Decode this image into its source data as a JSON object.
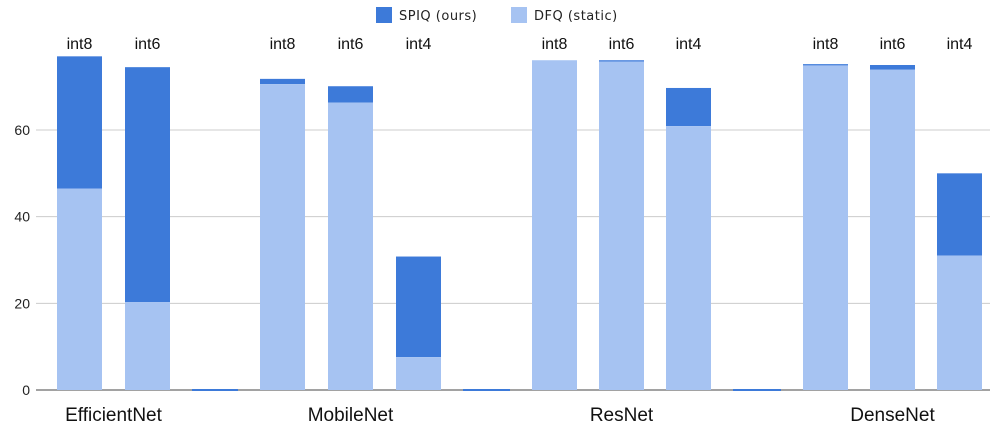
{
  "chart_data": {
    "type": "bar",
    "stacked": true,
    "title": "",
    "xlabel": "",
    "ylabel": "",
    "ylim": [
      0,
      78
    ],
    "yticks": [
      0,
      20,
      40,
      60
    ],
    "grid": true,
    "legend": {
      "position": "top-center",
      "entries": [
        {
          "name": "SPIQ (ours)",
          "color": "#3d7ad9"
        },
        {
          "name": "DFQ (static)",
          "color": "#a6c3f2"
        }
      ]
    },
    "groups": [
      {
        "name": "EfficientNet",
        "bars": [
          {
            "label": "int8",
            "dfq": 46.5,
            "spiq_total": 77.0
          },
          {
            "label": "int6",
            "dfq": 20.3,
            "spiq_total": 74.5
          }
        ]
      },
      {
        "name": "MobileNet",
        "bars": [
          {
            "label": "int8",
            "dfq": 70.6,
            "spiq_total": 71.8
          },
          {
            "label": "int6",
            "dfq": 66.3,
            "spiq_total": 70.1
          },
          {
            "label": "int4",
            "dfq": 7.6,
            "spiq_total": 30.8
          }
        ]
      },
      {
        "name": "ResNet",
        "bars": [
          {
            "label": "int8",
            "dfq": 76.1,
            "spiq_total": 76.1
          },
          {
            "label": "int6",
            "dfq": 75.8,
            "spiq_total": 76.1
          },
          {
            "label": "int4",
            "dfq": 60.9,
            "spiq_total": 69.7
          }
        ]
      },
      {
        "name": "DenseNet",
        "bars": [
          {
            "label": "int8",
            "dfq": 74.9,
            "spiq_total": 75.2
          },
          {
            "label": "int6",
            "dfq": 73.9,
            "spiq_total": 75.0
          },
          {
            "label": "int4",
            "dfq": 31.0,
            "spiq_total": 50.0
          }
        ]
      }
    ],
    "colors": {
      "spiq": "#3d7ad9",
      "dfq": "#a6c3f2",
      "grid": "#cccccc",
      "axis": "#444444",
      "separator": "#3d7ad9"
    }
  }
}
